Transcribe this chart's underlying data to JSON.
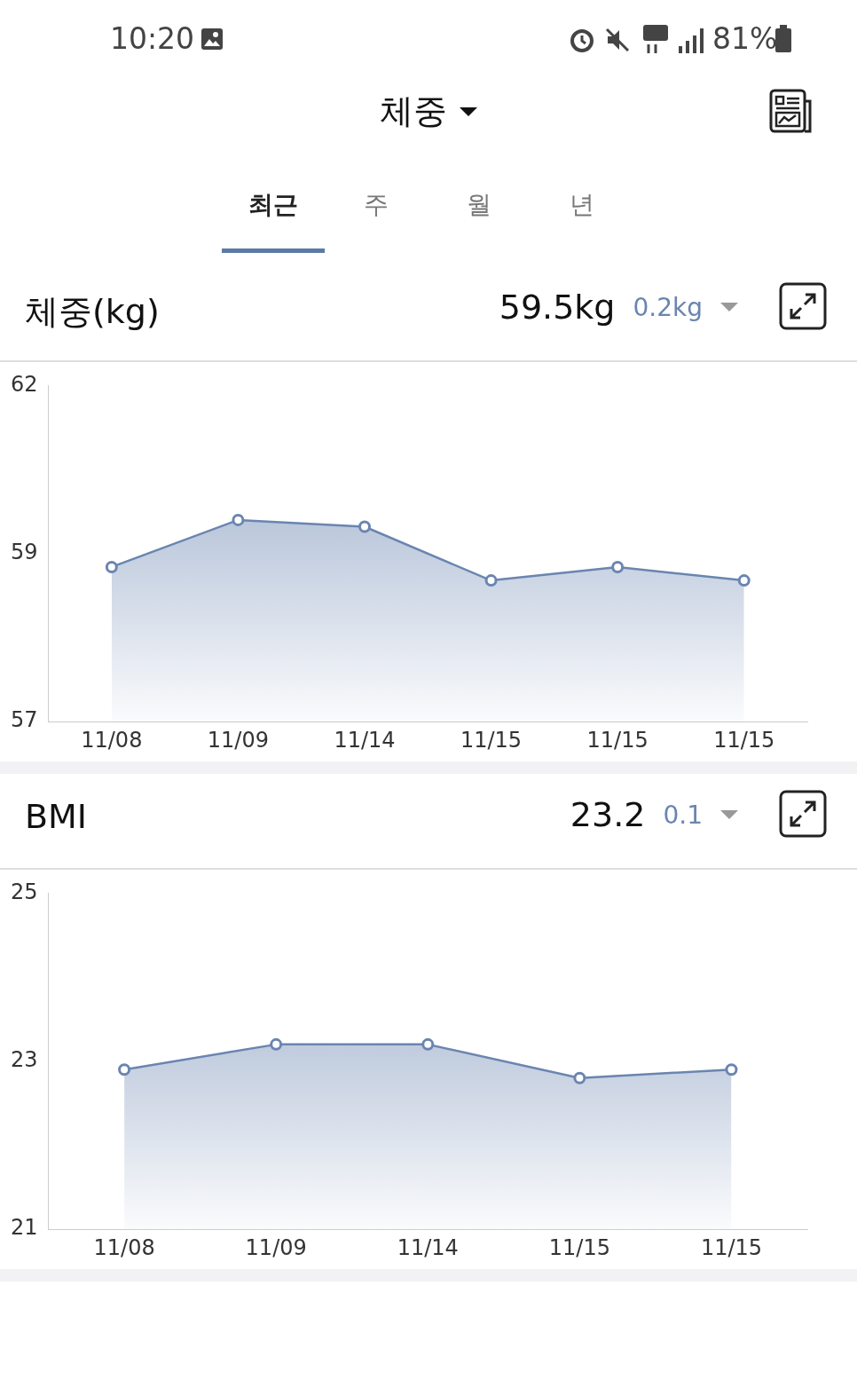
{
  "chart_data": [
    {
      "type": "other",
      "title": "체중",
      "annotations": [
        "10:20",
        "81%",
        "최근",
        "주",
        "월",
        "년"
      ]
    },
    {
      "type": "area",
      "title": "체중(kg)",
      "annotations": [
        "59.5kg",
        "0.2kg"
      ],
      "categories": [
        "11/08",
        "11/09",
        "11/14",
        "11/15",
        "11/15",
        "11/15"
      ],
      "values": [
        59.3,
        60.0,
        59.9,
        59.1,
        59.3,
        59.1
      ],
      "color": "#6a85b0",
      "ylim": [
        57,
        62
      ],
      "yticks": [
        57,
        {
          "value": 59.5,
          "label": "59"
        },
        62
      ],
      "marker": "circle",
      "grid": false
    },
    {
      "type": "area",
      "title": "BMI",
      "annotations": [
        "23.2",
        "0.1"
      ],
      "categories": [
        "11/08",
        "11/09",
        "11/14",
        "11/15",
        "11/15"
      ],
      "values": [
        22.9,
        23.2,
        23.2,
        22.8,
        22.9
      ],
      "color": "#6a85b0",
      "ylim": [
        21,
        25
      ],
      "yticks": [
        21,
        23,
        25
      ],
      "marker": "circle",
      "grid": false
    }
  ]
}
